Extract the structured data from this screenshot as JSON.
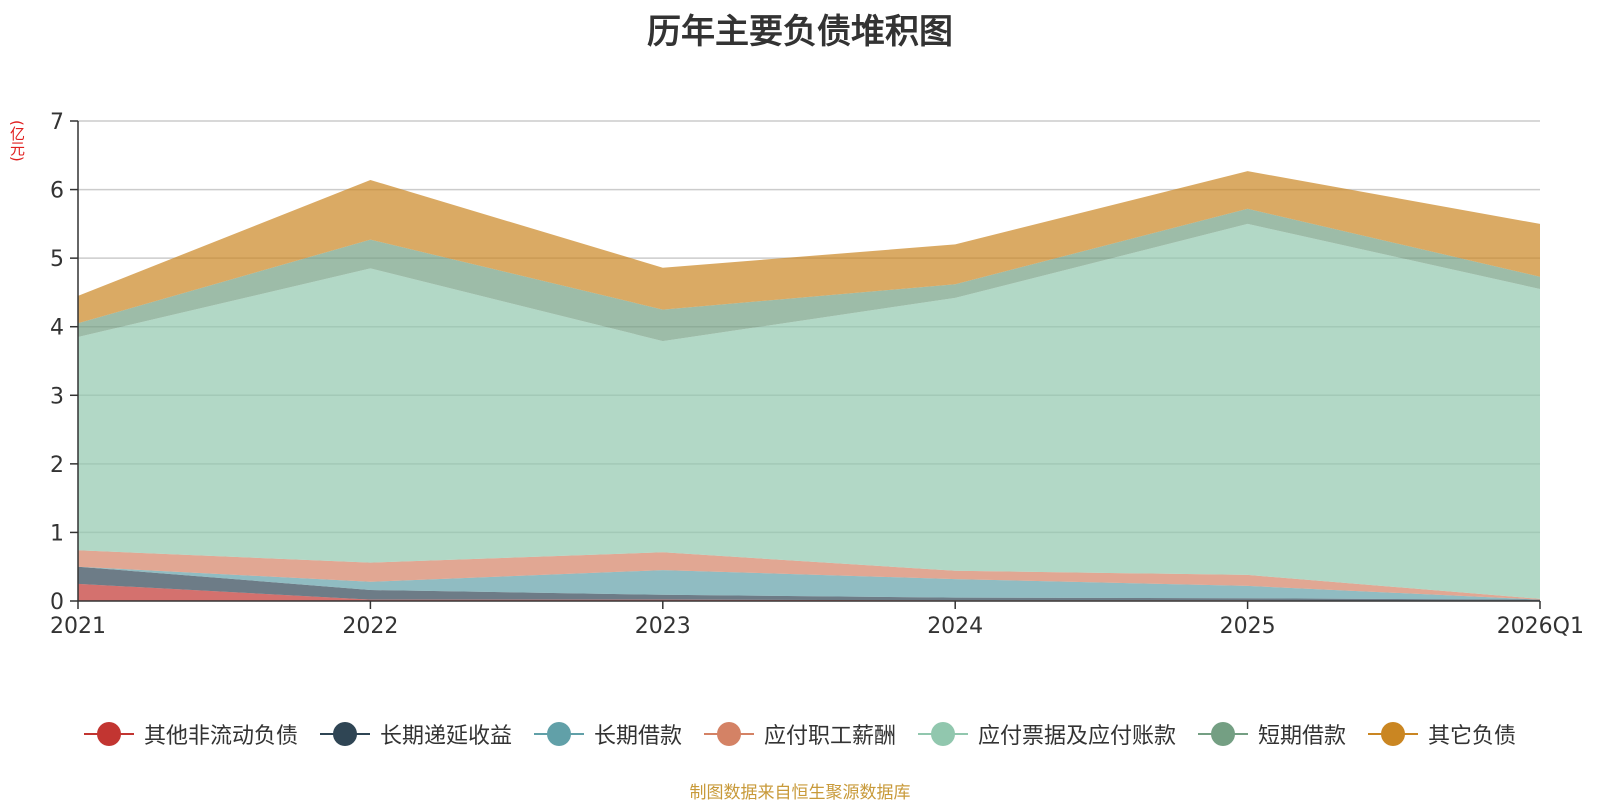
{
  "chart_data": {
    "type": "area",
    "stacked": true,
    "title": "历年主要负债堆积图",
    "unit_label": "(亿元)",
    "categories": [
      "2021",
      "2022",
      "2023",
      "2024",
      "2025",
      "2026Q1"
    ],
    "ylim": [
      0,
      7
    ],
    "yticks": [
      0,
      1,
      2,
      3,
      4,
      5,
      6,
      7
    ],
    "grid": true,
    "legend_position": "bottom",
    "series": [
      {
        "name": "其他非流动负债",
        "color": "#c23531",
        "values": [
          0.25,
          0.02,
          0.02,
          0.01,
          0.01,
          0.0
        ]
      },
      {
        "name": "长期递延收益",
        "color": "#2f4554",
        "values": [
          0.25,
          0.14,
          0.07,
          0.04,
          0.03,
          0.02
        ]
      },
      {
        "name": "长期借款",
        "color": "#61a0a8",
        "values": [
          0.0,
          0.12,
          0.36,
          0.27,
          0.18,
          0.0
        ]
      },
      {
        "name": "应付职工薪酬",
        "color": "#d48265",
        "values": [
          0.24,
          0.28,
          0.26,
          0.12,
          0.16,
          0.01
        ]
      },
      {
        "name": "应付票据及应付账款",
        "color": "#91c7ae",
        "values": [
          3.11,
          4.29,
          3.08,
          3.98,
          5.12,
          4.52
        ]
      },
      {
        "name": "短期借款",
        "color": "#749f83",
        "values": [
          0.2,
          0.42,
          0.46,
          0.2,
          0.22,
          0.18
        ]
      },
      {
        "name": "其它负债",
        "color": "#ca8622",
        "values": [
          0.4,
          0.87,
          0.61,
          0.58,
          0.55,
          0.77
        ]
      }
    ]
  },
  "footer": {
    "source": "制图数据来自恒生聚源数据库"
  }
}
